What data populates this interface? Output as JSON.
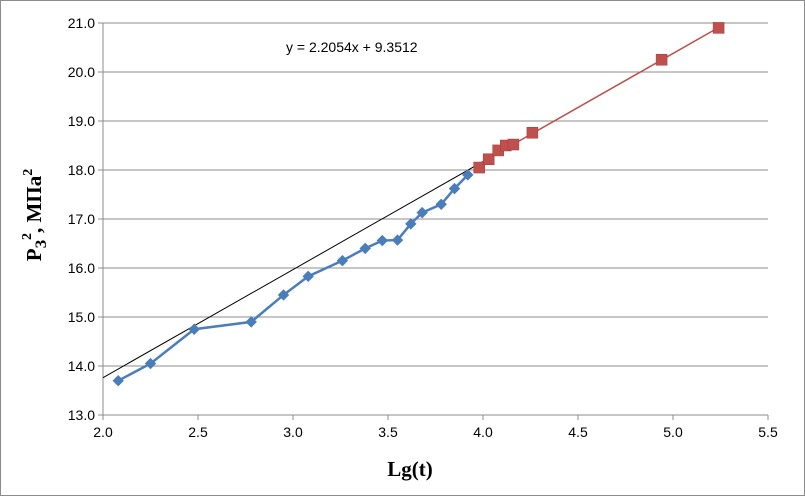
{
  "chart_data": {
    "type": "scatter",
    "xlabel": "Lg(t)",
    "ylabel_main": "P",
    "ylabel_sub": "З",
    "ylabel_sup": "2",
    "ylabel_rest": ", МПа",
    "ylabel_rest_sup": "2",
    "xlim": [
      2.0,
      5.5
    ],
    "ylim": [
      13.0,
      21.0
    ],
    "x_ticks": [
      "2.0",
      "2.5",
      "3.0",
      "3.5",
      "4.0",
      "4.5",
      "5.0",
      "5.5"
    ],
    "y_ticks": [
      "13.0",
      "14.0",
      "15.0",
      "16.0",
      "17.0",
      "18.0",
      "19.0",
      "20.0",
      "21.0"
    ],
    "grid": "horizontal",
    "legend": "none",
    "series": [
      {
        "style": "line+diamond",
        "color": "#4a7ebb",
        "points": [
          [
            2.08,
            13.7
          ],
          [
            2.25,
            14.05
          ],
          [
            2.48,
            14.75
          ],
          [
            2.78,
            14.9
          ],
          [
            2.95,
            15.45
          ],
          [
            3.08,
            15.83
          ],
          [
            3.26,
            16.15
          ],
          [
            3.38,
            16.4
          ],
          [
            3.47,
            16.56
          ],
          [
            3.55,
            16.57
          ],
          [
            3.62,
            16.9
          ],
          [
            3.68,
            17.13
          ],
          [
            3.78,
            17.3
          ],
          [
            3.85,
            17.62
          ],
          [
            3.92,
            17.9
          ]
        ]
      },
      {
        "style": "marker-square",
        "color": "#c0504d",
        "points": [
          [
            3.98,
            18.05
          ],
          [
            4.03,
            18.22
          ],
          [
            4.08,
            18.4
          ],
          [
            4.12,
            18.5
          ],
          [
            4.16,
            18.52
          ],
          [
            4.26,
            18.76
          ],
          [
            4.94,
            20.25
          ],
          [
            5.24,
            20.9
          ]
        ]
      },
      {
        "style": "trendline",
        "color": "#000000",
        "x": [
          2.0,
          5.25
        ],
        "slope": 2.2054,
        "intercept": 9.3512
      },
      {
        "style": "trendline",
        "color": "#c0504d",
        "x": [
          3.98,
          5.24
        ],
        "slope": 2.2054,
        "intercept": 9.3512
      }
    ],
    "annotation": "y = 2.2054x + 9.3512"
  }
}
